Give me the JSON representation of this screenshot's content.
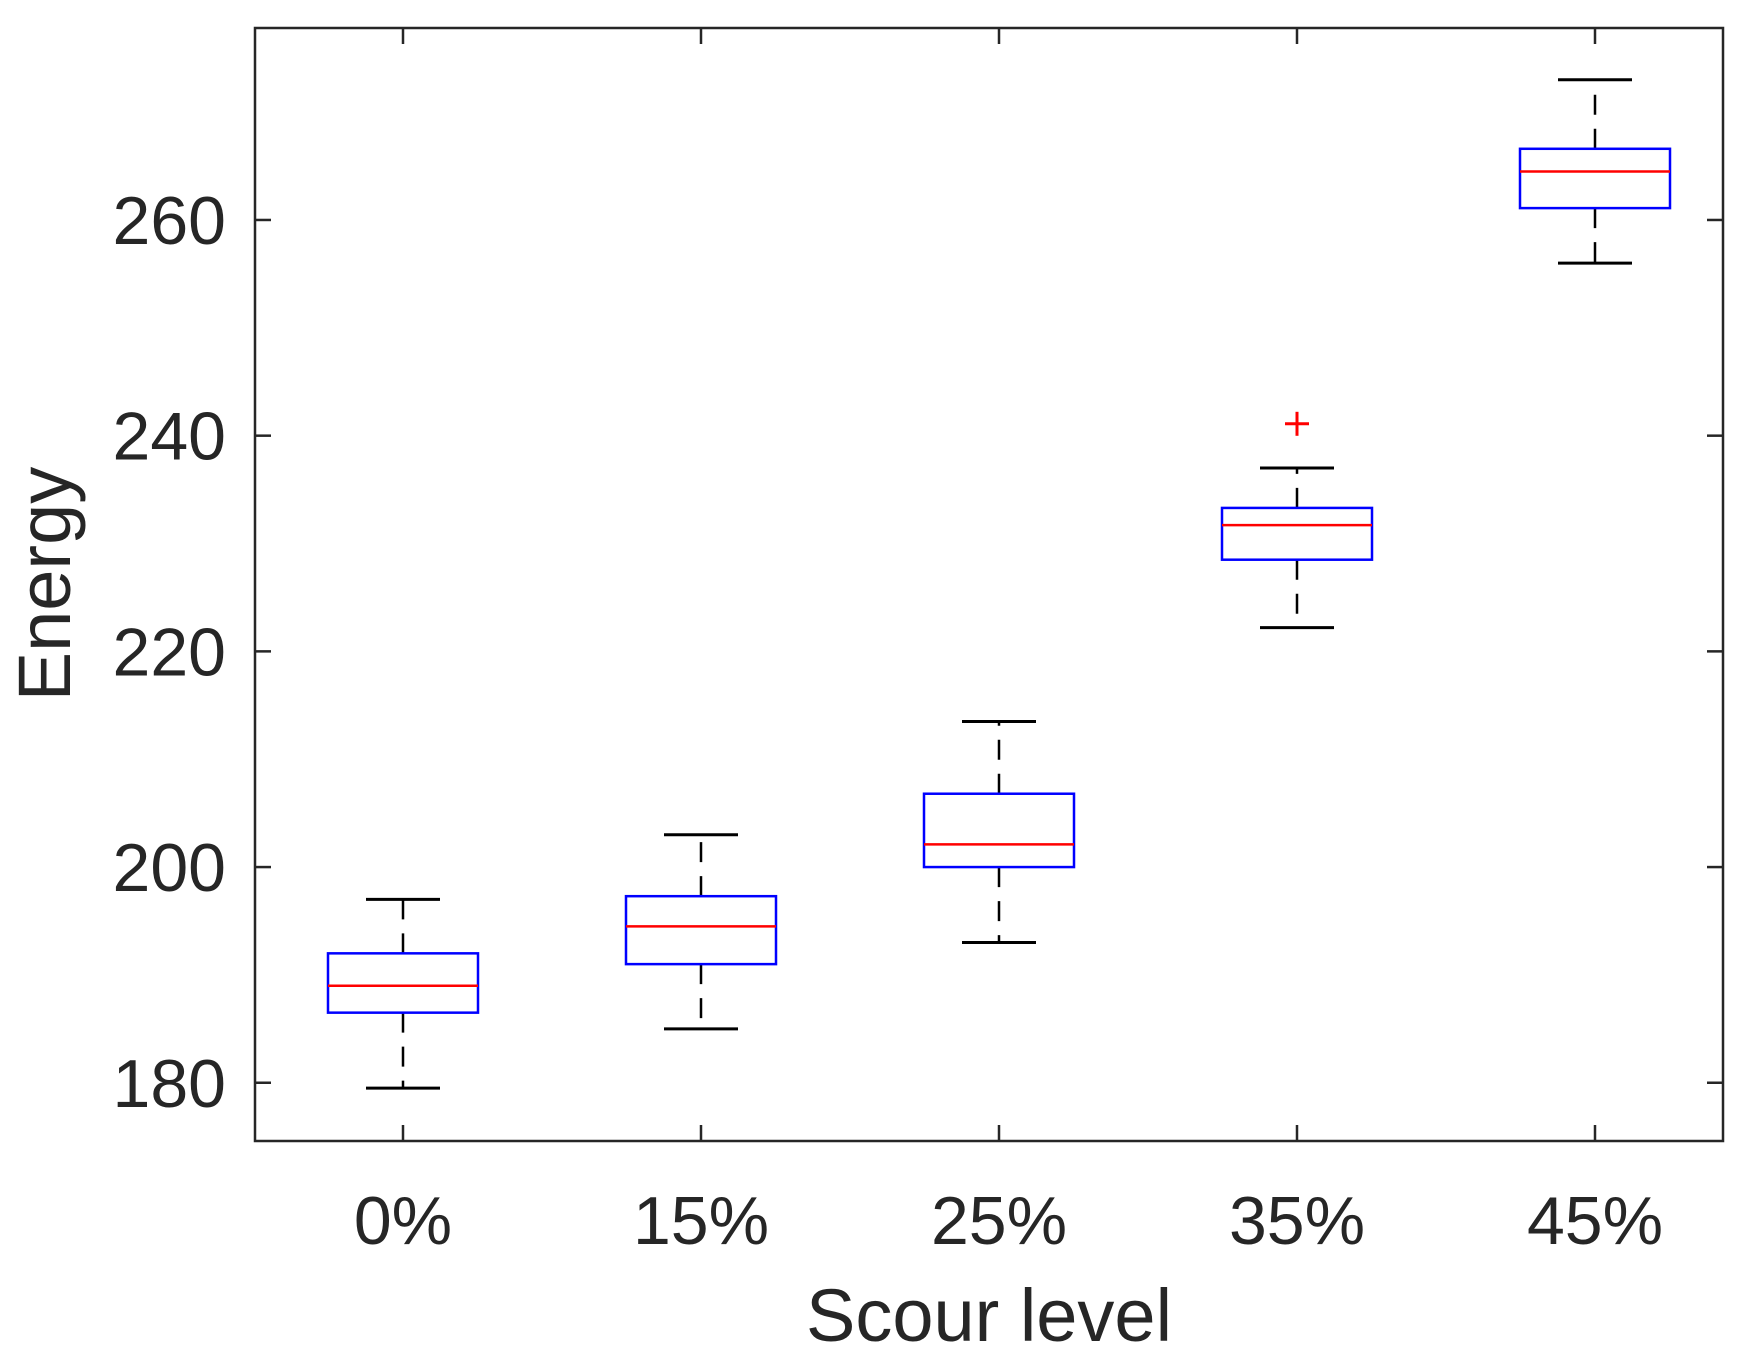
{
  "chart_data": {
    "type": "boxplot",
    "title": "",
    "xlabel": "Scour level",
    "ylabel": "Energy",
    "categories": [
      "0%",
      "15%",
      "25%",
      "35%",
      "45%"
    ],
    "ylim": [
      174.6,
      277.8
    ],
    "yticks": [
      180,
      200,
      220,
      240,
      260
    ],
    "grid": false,
    "boxes": [
      {
        "category": "0%",
        "whisker_low": 179.5,
        "q1": 186.5,
        "median": 189.0,
        "q3": 192.0,
        "whisker_high": 197.0,
        "outliers": []
      },
      {
        "category": "15%",
        "whisker_low": 185.0,
        "q1": 191.0,
        "median": 194.5,
        "q3": 197.3,
        "whisker_high": 203.0,
        "outliers": []
      },
      {
        "category": "25%",
        "whisker_low": 193.0,
        "q1": 200.0,
        "median": 202.1,
        "q3": 206.8,
        "whisker_high": 213.5,
        "outliers": []
      },
      {
        "category": "35%",
        "whisker_low": 222.2,
        "q1": 228.5,
        "median": 231.7,
        "q3": 233.3,
        "whisker_high": 237.0,
        "outliers": [
          241.1
        ]
      },
      {
        "category": "45%",
        "whisker_low": 256.0,
        "q1": 261.1,
        "median": 264.5,
        "q3": 266.6,
        "whisker_high": 273.0,
        "outliers": []
      }
    ],
    "colors": {
      "box": "#0000ff",
      "median": "#ff0000",
      "whisker": "#000000",
      "outlier": "#ff0000",
      "axis": "#262626"
    }
  }
}
